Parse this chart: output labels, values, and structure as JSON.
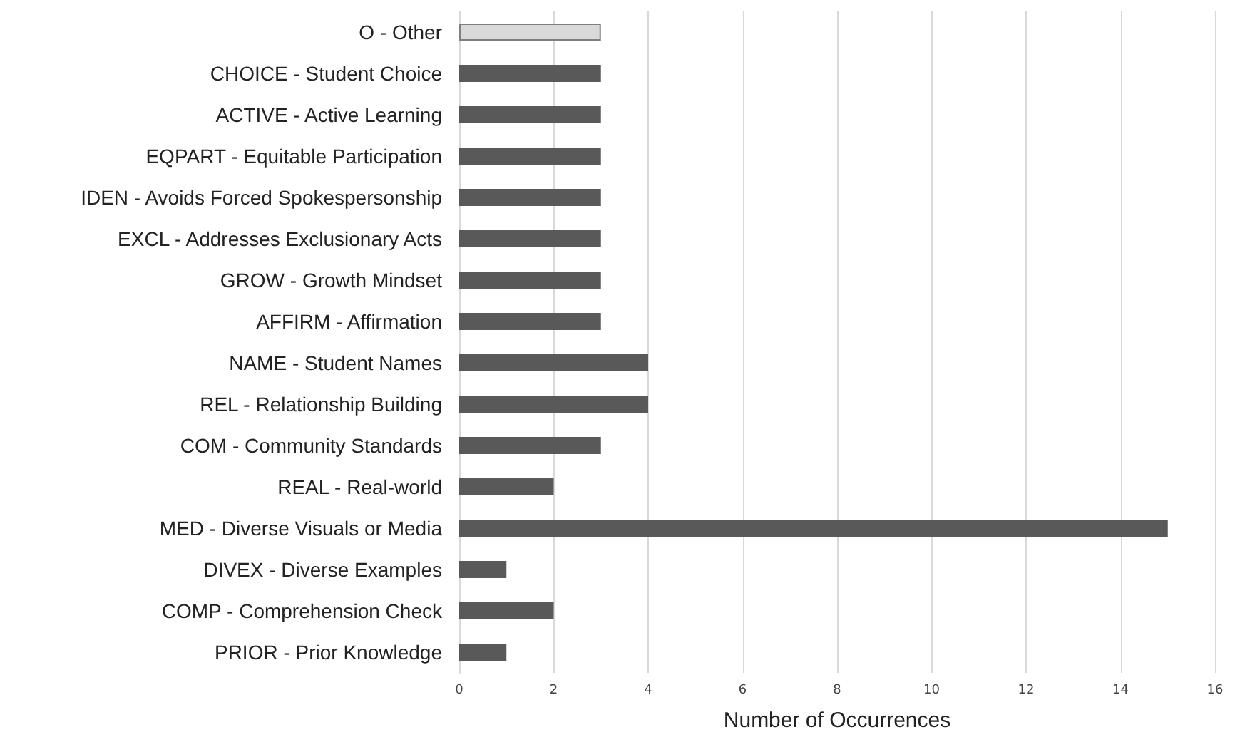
{
  "chart_data": {
    "type": "bar",
    "orientation": "horizontal",
    "xlabel": "Number of Occurrences",
    "categories": [
      "O - Other",
      "CHOICE - Student Choice",
      "ACTIVE - Active Learning",
      "EQPART - Equitable Participation",
      "IDEN - Avoids Forced Spokespersonship",
      "EXCL - Addresses Exclusionary Acts",
      "GROW - Growth Mindset",
      "AFFIRM - Affirmation",
      "NAME - Student Names",
      "REL - Relationship Building",
      "COM - Community Standards",
      "REAL - Real-world",
      "MED - Diverse Visuals or Media",
      "DIVEX - Diverse Examples",
      "COMP - Comprehension Check",
      "PRIOR - Prior Knowledge"
    ],
    "values": [
      3,
      3,
      3,
      3,
      3,
      3,
      3,
      3,
      4,
      4,
      3,
      2,
      15,
      1,
      2,
      1
    ],
    "colors": [
      "#d9d9d9",
      "#595959",
      "#595959",
      "#595959",
      "#595959",
      "#595959",
      "#595959",
      "#595959",
      "#595959",
      "#595959",
      "#595959",
      "#595959",
      "#595959",
      "#595959",
      "#595959",
      "#595959"
    ],
    "xlim": [
      0,
      16
    ],
    "xticks": [
      0,
      2,
      4,
      6,
      8,
      10,
      12,
      14,
      16
    ],
    "grid": "x"
  }
}
